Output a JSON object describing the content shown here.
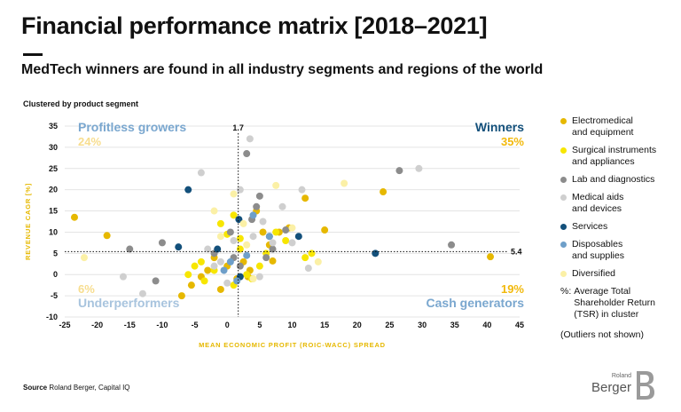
{
  "header": {
    "title": "Financial performance matrix [2018–2021]",
    "subtitle": "MedTech winners are found in all industry segments and regions of the world",
    "cluster_note": "Clustered by product segment"
  },
  "legend": {
    "items": [
      {
        "label": "Electromedical\nand equipment",
        "color": "#e6b800"
      },
      {
        "label": "Surgical instruments\nand appliances",
        "color": "#f7e600"
      },
      {
        "label": "Lab and diagnostics",
        "color": "#8c8c8c"
      },
      {
        "label": "Medical aids\nand devices",
        "color": "#cfcfcf"
      },
      {
        "label": "Services",
        "color": "#13507b"
      },
      {
        "label": "Disposables\nand supplies",
        "color": "#6e9fc9"
      },
      {
        "label": "Diversified",
        "color": "#fbf0a6"
      }
    ],
    "pct_symbol": "%:",
    "pct_note": "Average Total Shareholder Return (TSR) in cluster",
    "outliers_note": "(Outliers not shown)"
  },
  "footer": {
    "source_label": "Source",
    "source_text": "Roland Berger, Capital IQ"
  },
  "logo": {
    "small": "Roland",
    "large": "Berger"
  },
  "colors": {
    "axis_label": "#e6b800",
    "quadrant_blue_dark": "#13507b",
    "quadrant_blue_light": "#7aa7cf",
    "quadrant_blue_pale": "#a8c4de",
    "pct_yellow": "#f2b90c",
    "pct_pale": "#f7dd8e"
  },
  "chart_data": {
    "type": "scatter",
    "xlabel": "MEAN ECONOMIC PROFIT (ROIC-WACC) SPREAD",
    "ylabel": "REVENUE CAGR [%]",
    "xlim": [
      -25,
      45
    ],
    "ylim": [
      -10,
      35
    ],
    "xticks": [
      -25,
      -20,
      -15,
      -10,
      -5,
      0,
      5,
      10,
      15,
      20,
      25,
      30,
      35,
      40,
      45
    ],
    "yticks": [
      -10,
      -5,
      0,
      5,
      10,
      15,
      20,
      25,
      30,
      35
    ],
    "divider_x": 1.7,
    "divider_y": 5.4,
    "divider_x_label": "1.7",
    "divider_y_label": "5.4",
    "quadrants": [
      {
        "name": "Profitless growers",
        "pct": "24%",
        "position": "top-left"
      },
      {
        "name": "Winners",
        "pct": "35%",
        "position": "top-right"
      },
      {
        "name": "Underperformers",
        "pct": "6%",
        "position": "bottom-left"
      },
      {
        "name": "Cash generators",
        "pct": "19%",
        "position": "bottom-right"
      }
    ],
    "series": [
      {
        "name": "Electromedical and equipment",
        "color": "#e6b800",
        "points": [
          [
            -23.5,
            13.5
          ],
          [
            -18.5,
            9.2
          ],
          [
            -7,
            -5
          ],
          [
            -5.5,
            -2.5
          ],
          [
            -3,
            1
          ],
          [
            -1,
            -3.5
          ],
          [
            0,
            2
          ],
          [
            1.5,
            -1
          ],
          [
            2.5,
            3
          ],
          [
            3.2,
            -0.5
          ],
          [
            4.5,
            15
          ],
          [
            5.5,
            10
          ],
          [
            6.5,
            7
          ],
          [
            7,
            3.2
          ],
          [
            8,
            10
          ],
          [
            9.5,
            11
          ],
          [
            12,
            18
          ],
          [
            15,
            10.5
          ],
          [
            24,
            19.5
          ],
          [
            40.5,
            4.2
          ],
          [
            -2,
            4
          ],
          [
            -4,
            -0.5
          ],
          [
            3.5,
            1
          ]
        ]
      },
      {
        "name": "Surgical instruments and appliances",
        "color": "#f7e600",
        "points": [
          [
            -6,
            0
          ],
          [
            -5,
            2
          ],
          [
            -4,
            3
          ],
          [
            -2,
            1
          ],
          [
            -1,
            12
          ],
          [
            0,
            9.5
          ],
          [
            1,
            14
          ],
          [
            2,
            6
          ],
          [
            3,
            0
          ],
          [
            3.8,
            -1
          ],
          [
            5,
            2
          ],
          [
            6,
            5
          ],
          [
            7.5,
            10
          ],
          [
            9,
            8
          ],
          [
            12,
            4
          ],
          [
            13,
            5
          ],
          [
            -3.5,
            -1.5
          ],
          [
            1,
            -2.5
          ],
          [
            2,
            8.5
          ]
        ]
      },
      {
        "name": "Lab and diagnostics",
        "color": "#8c8c8c",
        "points": [
          [
            -15,
            6
          ],
          [
            -11,
            -1.5
          ],
          [
            -10,
            7.5
          ],
          [
            -2,
            5
          ],
          [
            0.5,
            10
          ],
          [
            1,
            4
          ],
          [
            2,
            2
          ],
          [
            3,
            28.5
          ],
          [
            3.8,
            13
          ],
          [
            4.5,
            16
          ],
          [
            5,
            18.5
          ],
          [
            6,
            4
          ],
          [
            6.5,
            9
          ],
          [
            7,
            6
          ],
          [
            9,
            10.5
          ],
          [
            26.5,
            24.5
          ],
          [
            34.5,
            7
          ]
        ]
      },
      {
        "name": "Medical aids and devices",
        "color": "#cfcfcf",
        "points": [
          [
            -16,
            -0.5
          ],
          [
            -13,
            -4.5
          ],
          [
            -4,
            24
          ],
          [
            -2,
            2
          ],
          [
            -1,
            3
          ],
          [
            0,
            -2
          ],
          [
            1,
            8
          ],
          [
            2,
            20
          ],
          [
            3.5,
            32
          ],
          [
            4,
            9
          ],
          [
            5.5,
            12.5
          ],
          [
            7,
            7.5
          ],
          [
            8.5,
            16
          ],
          [
            10,
            7.5
          ],
          [
            11.5,
            20
          ],
          [
            12.5,
            1.5
          ],
          [
            29.5,
            25
          ],
          [
            -3,
            6
          ],
          [
            5,
            -0.5
          ]
        ]
      },
      {
        "name": "Services",
        "color": "#13507b",
        "points": [
          [
            -6,
            20
          ],
          [
            -7.5,
            6.5
          ],
          [
            -1.5,
            6
          ],
          [
            1.8,
            13
          ],
          [
            2,
            -0.5
          ],
          [
            11,
            9
          ],
          [
            22.8,
            5
          ]
        ]
      },
      {
        "name": "Disposables and supplies",
        "color": "#6e9fc9",
        "points": [
          [
            -0.5,
            1
          ],
          [
            0.5,
            3
          ],
          [
            1.5,
            -1.5
          ],
          [
            3,
            4.5
          ],
          [
            4,
            14
          ],
          [
            6.5,
            9
          ]
        ]
      },
      {
        "name": "Diversified",
        "color": "#fbf0a6",
        "points": [
          [
            -22,
            4
          ],
          [
            -2,
            15
          ],
          [
            1,
            19
          ],
          [
            3,
            7
          ],
          [
            4,
            -1
          ],
          [
            7.5,
            21
          ],
          [
            10,
            11
          ],
          [
            14,
            3
          ],
          [
            18,
            21.5
          ],
          [
            -1,
            9
          ],
          [
            2.5,
            12
          ]
        ]
      }
    ]
  }
}
